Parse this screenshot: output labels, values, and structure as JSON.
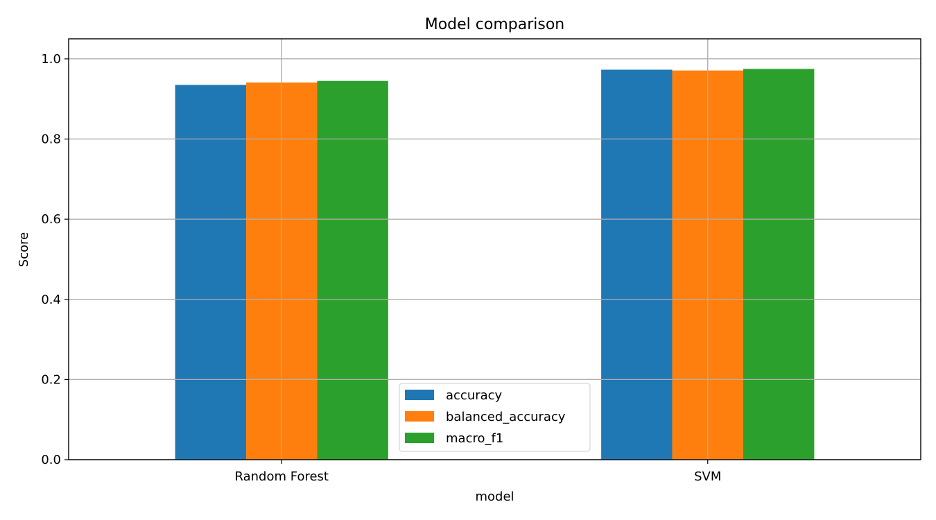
{
  "chart_data": {
    "type": "bar",
    "title": "Model comparison",
    "xlabel": "model",
    "ylabel": "Score",
    "categories": [
      "Random Forest",
      "SVM"
    ],
    "series": [
      {
        "name": "accuracy",
        "color": "#1f77b4",
        "values": [
          0.935,
          0.973
        ]
      },
      {
        "name": "balanced_accuracy",
        "color": "#ff7f0e",
        "values": [
          0.941,
          0.971
        ]
      },
      {
        "name": "macro_f1",
        "color": "#2ca02c",
        "values": [
          0.945,
          0.975
        ]
      }
    ],
    "ylim": [
      0,
      1.05
    ],
    "yticks": [
      "0.0",
      "0.2",
      "0.4",
      "0.6",
      "0.8",
      "1.0"
    ],
    "grid": true,
    "legend_position": "bottom-center"
  }
}
